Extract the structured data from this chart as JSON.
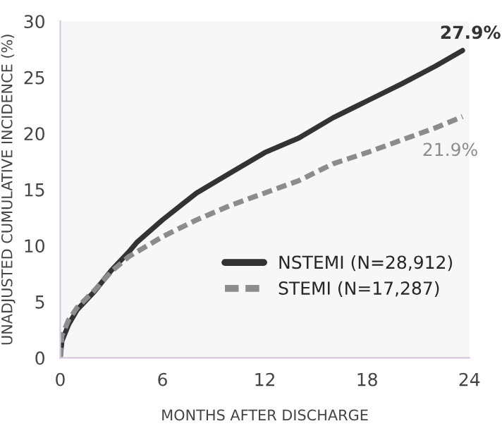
{
  "chart_data": {
    "type": "line",
    "xlabel": "MONTHS AFTER DISCHARGE",
    "ylabel": "UNADJUSTED CUMULATIVE INCIDENCE (%)",
    "xlim": [
      0,
      24
    ],
    "xticks": [
      0,
      6,
      12,
      18,
      24
    ],
    "ylim": [
      0,
      30
    ],
    "yticks": [
      0,
      5,
      10,
      15,
      20,
      25,
      30
    ],
    "grid": false,
    "legend": "bottom right",
    "marker": "none",
    "series": [
      {
        "name": "NSTEMI (N=28,912)",
        "color": "#333333",
        "line_style": "solid",
        "x": [
          0,
          0.1,
          0.5,
          1,
          2,
          3,
          4,
          4.5,
          6,
          8,
          10,
          12,
          14,
          16,
          18,
          20,
          22,
          23.6
        ],
        "values": [
          0,
          1.5,
          3,
          4.3,
          5.9,
          7.8,
          9.4,
          10.3,
          12.3,
          14.7,
          16.5,
          18.3,
          19.6,
          21.4,
          22.9,
          24.4,
          26.0,
          27.4
        ]
      },
      {
        "name": "STEMI (N=17,287)",
        "color": "#8c8c8c",
        "line_style": "dashed",
        "x": [
          0,
          0.1,
          0.5,
          1,
          2,
          3,
          4,
          6,
          8,
          10,
          12,
          14,
          16,
          18,
          20,
          22,
          23.6
        ],
        "values": [
          0,
          2,
          3.4,
          4.5,
          6,
          7.7,
          9,
          10.8,
          12.3,
          13.6,
          14.7,
          15.8,
          17.3,
          18.3,
          19.4,
          20.5,
          21.5
        ]
      }
    ],
    "annotations": [
      {
        "text": "27.9%",
        "x": 23.6,
        "y": 27.4
      },
      {
        "text": "21.9%",
        "x": 23.6,
        "y": 21.5
      }
    ]
  }
}
